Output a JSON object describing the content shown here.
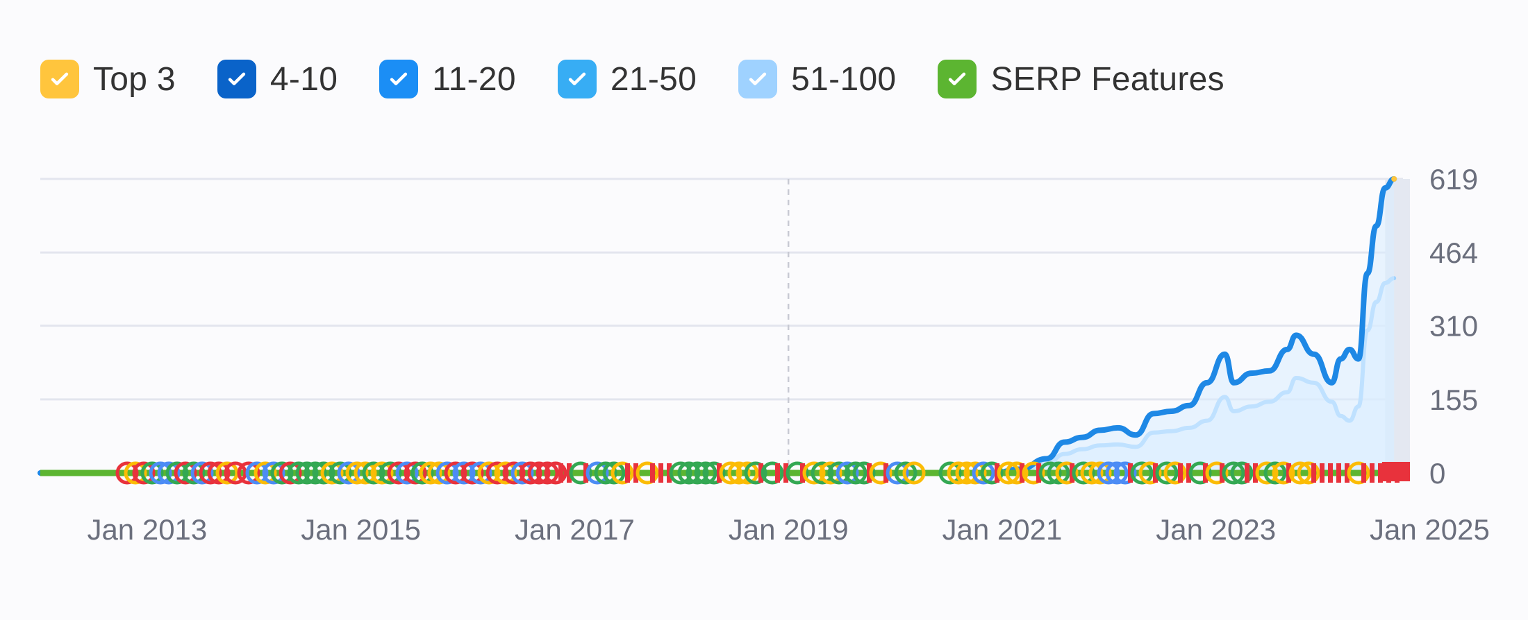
{
  "legend": [
    {
      "label": "Top 3",
      "color": "#ffc53d"
    },
    {
      "label": "4-10",
      "color": "#0a63c9"
    },
    {
      "label": "11-20",
      "color": "#1b8ef5"
    },
    {
      "label": "21-50",
      "color": "#37adf4"
    },
    {
      "label": "51-100",
      "color": "#9fd2ff"
    },
    {
      "label": "SERP Features",
      "color": "#5cb531"
    }
  ],
  "chart_data": {
    "type": "area",
    "y_ticks": [
      "619",
      "464",
      "310",
      "155",
      "0"
    ],
    "x_ticks": [
      "Jan 2013",
      "Jan 2015",
      "Jan 2017",
      "Jan 2019",
      "Jan 2021",
      "Jan 2023",
      "Jan 2025"
    ],
    "ylim": [
      0,
      619
    ],
    "xlim": [
      "2012-01",
      "2024-10"
    ],
    "grid": true,
    "series": [
      {
        "color": "#1e88e5",
        "x": [
          "2012-01",
          "2020-12",
          "2021-03",
          "2021-06",
          "2021-08",
          "2021-10",
          "2021-12",
          "2022-02",
          "2022-04",
          "2022-06",
          "2022-08",
          "2022-10",
          "2022-12",
          "2023-02",
          "2023-03",
          "2023-05",
          "2023-07",
          "2023-09",
          "2023-10",
          "2023-12",
          "2024-02",
          "2024-03",
          "2024-04",
          "2024-05",
          "2024-06",
          "2024-07",
          "2024-08",
          "2024-09"
        ],
        "values": [
          0,
          0,
          8,
          30,
          65,
          75,
          90,
          95,
          80,
          125,
          130,
          142,
          190,
          250,
          190,
          210,
          215,
          260,
          290,
          250,
          190,
          240,
          260,
          240,
          420,
          520,
          600,
          619
        ]
      },
      {
        "color": "#9fd2ff",
        "x": [
          "2012-01",
          "2020-12",
          "2021-03",
          "2021-06",
          "2021-08",
          "2021-10",
          "2021-12",
          "2022-02",
          "2022-04",
          "2022-06",
          "2022-08",
          "2022-10",
          "2022-12",
          "2023-02",
          "2023-03",
          "2023-05",
          "2023-07",
          "2023-09",
          "2023-10",
          "2023-12",
          "2024-02",
          "2024-03",
          "2024-04",
          "2024-05",
          "2024-06",
          "2024-07",
          "2024-08",
          "2024-09"
        ],
        "values": [
          0,
          0,
          4,
          18,
          40,
          50,
          58,
          60,
          55,
          85,
          88,
          95,
          110,
          160,
          130,
          140,
          150,
          170,
          200,
          190,
          150,
          120,
          110,
          140,
          300,
          360,
          400,
          410
        ]
      }
    ],
    "serp_features_line": true
  }
}
